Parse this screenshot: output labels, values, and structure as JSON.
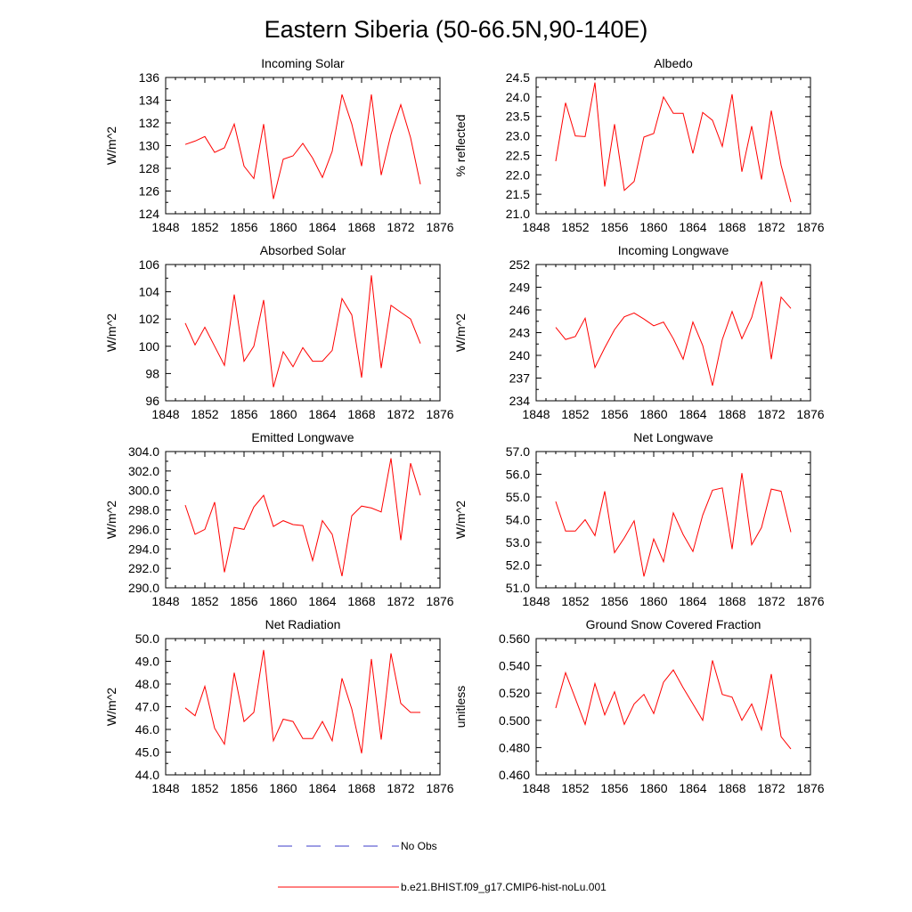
{
  "figure": {
    "title": "Eastern Siberia (50-66.5N,90-140E)"
  },
  "legend": {
    "items": [
      {
        "label": "No Obs",
        "color": "#3b3bc8",
        "style": "dashed"
      },
      {
        "label": "b.e21.BHIST.f09_g17.CMIP6-hist-noLu.001",
        "color": "#ff0000",
        "style": "solid"
      }
    ]
  },
  "chart_data": [
    {
      "type": "line",
      "title": "Incoming Solar",
      "ylabel": "W/m^2",
      "xlim": [
        1848,
        1876
      ],
      "xticks": [
        1848,
        1852,
        1856,
        1860,
        1864,
        1868,
        1872,
        1876
      ],
      "ylim": [
        124,
        136
      ],
      "yticks": [
        124,
        126,
        128,
        130,
        132,
        134,
        136
      ],
      "ytick_decimals": 0,
      "series": [
        {
          "color": "#ff0000",
          "x": [
            1850,
            1851,
            1852,
            1853,
            1854,
            1855,
            1856,
            1857,
            1858,
            1859,
            1860,
            1861,
            1862,
            1863,
            1864,
            1865,
            1866,
            1867,
            1868,
            1869,
            1870,
            1871,
            1872,
            1873,
            1874
          ],
          "values": [
            130.1,
            130.4,
            130.8,
            129.4,
            129.8,
            131.9,
            128.2,
            127.1,
            131.9,
            125.3,
            128.8,
            129.1,
            130.2,
            128.9,
            127.2,
            129.5,
            134.5,
            131.9,
            128.2,
            134.5,
            127.4,
            131.0,
            133.6,
            130.7,
            126.6
          ]
        }
      ]
    },
    {
      "type": "line",
      "title": "Albedo",
      "ylabel": "% reflected",
      "xlim": [
        1848,
        1876
      ],
      "xticks": [
        1848,
        1852,
        1856,
        1860,
        1864,
        1868,
        1872,
        1876
      ],
      "ylim": [
        21.0,
        24.5
      ],
      "yticks": [
        21.0,
        21.5,
        22.0,
        22.5,
        23.0,
        23.5,
        24.0,
        24.5
      ],
      "ytick_decimals": 1,
      "series": [
        {
          "color": "#ff0000",
          "x": [
            1850,
            1851,
            1852,
            1853,
            1854,
            1855,
            1856,
            1857,
            1858,
            1859,
            1860,
            1861,
            1862,
            1863,
            1864,
            1865,
            1866,
            1867,
            1868,
            1869,
            1870,
            1871,
            1872,
            1873,
            1874
          ],
          "values": [
            22.35,
            23.85,
            23.0,
            22.98,
            24.37,
            21.7,
            23.3,
            21.6,
            21.83,
            22.97,
            23.06,
            24.0,
            23.58,
            23.58,
            22.55,
            23.6,
            23.4,
            22.73,
            24.07,
            22.08,
            23.25,
            21.88,
            23.65,
            22.25,
            21.3
          ]
        }
      ]
    },
    {
      "type": "line",
      "title": "Absorbed Solar",
      "ylabel": "W/m^2",
      "xlim": [
        1848,
        1876
      ],
      "xticks": [
        1848,
        1852,
        1856,
        1860,
        1864,
        1868,
        1872,
        1876
      ],
      "ylim": [
        96,
        106
      ],
      "yticks": [
        96,
        98,
        100,
        102,
        104,
        106
      ],
      "ytick_decimals": 0,
      "series": [
        {
          "color": "#ff0000",
          "x": [
            1850,
            1851,
            1852,
            1853,
            1854,
            1855,
            1856,
            1857,
            1858,
            1859,
            1860,
            1861,
            1862,
            1863,
            1864,
            1865,
            1866,
            1867,
            1868,
            1869,
            1870,
            1871,
            1872,
            1873,
            1874
          ],
          "values": [
            101.7,
            100.1,
            101.4,
            100.0,
            98.6,
            103.8,
            98.9,
            100.0,
            103.4,
            97.0,
            99.6,
            98.5,
            99.9,
            98.9,
            98.9,
            99.7,
            103.5,
            102.3,
            97.7,
            105.2,
            98.4,
            103.0,
            102.5,
            102.0,
            100.2
          ]
        }
      ]
    },
    {
      "type": "line",
      "title": "Incoming Longwave",
      "ylabel": "W/m^2",
      "xlim": [
        1848,
        1876
      ],
      "xticks": [
        1848,
        1852,
        1856,
        1860,
        1864,
        1868,
        1872,
        1876
      ],
      "ylim": [
        234,
        252
      ],
      "yticks": [
        234,
        237,
        240,
        243,
        246,
        249,
        252
      ],
      "ytick_decimals": 0,
      "series": [
        {
          "color": "#ff0000",
          "x": [
            1850,
            1851,
            1852,
            1853,
            1854,
            1855,
            1856,
            1857,
            1858,
            1859,
            1860,
            1861,
            1862,
            1863,
            1864,
            1865,
            1866,
            1867,
            1868,
            1869,
            1870,
            1871,
            1872,
            1873,
            1874
          ],
          "values": [
            243.7,
            242.1,
            242.5,
            244.9,
            238.4,
            241.0,
            243.4,
            245.1,
            245.6,
            244.8,
            243.9,
            244.4,
            242.2,
            239.5,
            244.4,
            241.3,
            236.0,
            242.1,
            245.8,
            242.2,
            245.0,
            249.8,
            239.5,
            247.7,
            246.2
          ]
        }
      ]
    },
    {
      "type": "line",
      "title": "Emitted Longwave",
      "ylabel": "W/m^2",
      "xlim": [
        1848,
        1876
      ],
      "xticks": [
        1848,
        1852,
        1856,
        1860,
        1864,
        1868,
        1872,
        1876
      ],
      "ylim": [
        290.0,
        304.0
      ],
      "yticks": [
        290.0,
        292.0,
        294.0,
        296.0,
        298.0,
        300.0,
        302.0,
        304.0
      ],
      "ytick_decimals": 1,
      "series": [
        {
          "color": "#ff0000",
          "x": [
            1850,
            1851,
            1852,
            1853,
            1854,
            1855,
            1856,
            1857,
            1858,
            1859,
            1860,
            1861,
            1862,
            1863,
            1864,
            1865,
            1866,
            1867,
            1868,
            1869,
            1870,
            1871,
            1872,
            1873,
            1874
          ],
          "values": [
            298.5,
            295.5,
            296.0,
            298.8,
            291.6,
            296.2,
            296.0,
            298.3,
            299.5,
            296.3,
            296.9,
            296.5,
            296.4,
            292.8,
            296.9,
            295.5,
            291.2,
            297.4,
            298.4,
            298.2,
            297.8,
            303.3,
            294.9,
            302.8,
            299.5
          ]
        }
      ]
    },
    {
      "type": "line",
      "title": "Net Longwave",
      "ylabel": "W/m^2",
      "xlim": [
        1848,
        1876
      ],
      "xticks": [
        1848,
        1852,
        1856,
        1860,
        1864,
        1868,
        1872,
        1876
      ],
      "ylim": [
        51.0,
        57.0
      ],
      "yticks": [
        51.0,
        52.0,
        53.0,
        54.0,
        55.0,
        56.0,
        57.0
      ],
      "ytick_decimals": 1,
      "series": [
        {
          "color": "#ff0000",
          "x": [
            1850,
            1851,
            1852,
            1853,
            1854,
            1855,
            1856,
            1857,
            1858,
            1859,
            1860,
            1861,
            1862,
            1863,
            1864,
            1865,
            1866,
            1867,
            1868,
            1869,
            1870,
            1871,
            1872,
            1873,
            1874
          ],
          "values": [
            54.8,
            53.5,
            53.5,
            54.0,
            53.3,
            55.25,
            52.55,
            53.2,
            53.95,
            51.5,
            53.15,
            52.15,
            54.3,
            53.35,
            52.6,
            54.2,
            55.3,
            55.4,
            52.7,
            56.05,
            52.9,
            53.65,
            55.35,
            55.25,
            53.45
          ]
        }
      ]
    },
    {
      "type": "line",
      "title": "Net Radiation",
      "ylabel": "W/m^2",
      "xlim": [
        1848,
        1876
      ],
      "xticks": [
        1848,
        1852,
        1856,
        1860,
        1864,
        1868,
        1872,
        1876
      ],
      "ylim": [
        44.0,
        50.0
      ],
      "yticks": [
        44.0,
        45.0,
        46.0,
        47.0,
        48.0,
        49.0,
        50.0
      ],
      "ytick_decimals": 1,
      "series": [
        {
          "color": "#ff0000",
          "x": [
            1850,
            1851,
            1852,
            1853,
            1854,
            1855,
            1856,
            1857,
            1858,
            1859,
            1860,
            1861,
            1862,
            1863,
            1864,
            1865,
            1866,
            1867,
            1868,
            1869,
            1870,
            1871,
            1872,
            1873,
            1874
          ],
          "values": [
            46.95,
            46.6,
            47.9,
            46.05,
            45.35,
            48.5,
            46.35,
            46.75,
            49.5,
            45.5,
            46.45,
            46.35,
            45.6,
            45.6,
            46.35,
            45.5,
            48.25,
            46.9,
            44.95,
            49.1,
            45.55,
            49.35,
            47.15,
            46.75,
            46.75
          ]
        }
      ]
    },
    {
      "type": "line",
      "title": "Ground Snow Covered Fraction",
      "ylabel": "unitless",
      "xlim": [
        1848,
        1876
      ],
      "xticks": [
        1848,
        1852,
        1856,
        1860,
        1864,
        1868,
        1872,
        1876
      ],
      "ylim": [
        0.46,
        0.56
      ],
      "yticks": [
        0.46,
        0.48,
        0.5,
        0.52,
        0.54,
        0.56
      ],
      "ytick_decimals": 3,
      "series": [
        {
          "color": "#ff0000",
          "x": [
            1850,
            1851,
            1852,
            1853,
            1854,
            1855,
            1856,
            1857,
            1858,
            1859,
            1860,
            1861,
            1862,
            1863,
            1864,
            1865,
            1866,
            1867,
            1868,
            1869,
            1870,
            1871,
            1872,
            1873,
            1874
          ],
          "values": [
            0.509,
            0.535,
            0.516,
            0.497,
            0.527,
            0.504,
            0.521,
            0.497,
            0.512,
            0.519,
            0.505,
            0.528,
            0.537,
            0.524,
            0.512,
            0.5,
            0.544,
            0.519,
            0.517,
            0.5,
            0.512,
            0.493,
            0.534,
            0.488,
            0.479
          ]
        }
      ]
    }
  ]
}
